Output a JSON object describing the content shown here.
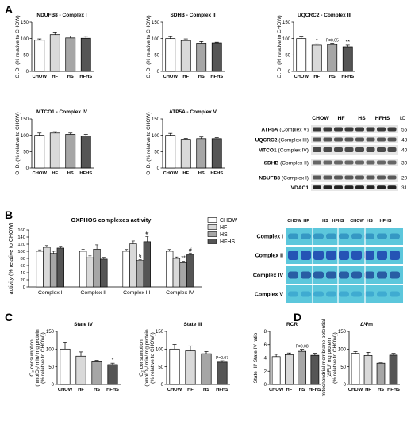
{
  "panels": {
    "A": "A",
    "B": "B",
    "C": "C",
    "D": "D"
  },
  "chart_data": [
    {
      "id": "ndufb8",
      "type": "bar",
      "title": "NDUFB8 - Complex I",
      "ylabel": "O. D. (% relative to CHOW)",
      "categories": [
        "CHOW",
        "HF",
        "HS",
        "HFHS"
      ],
      "values": [
        95,
        112,
        102,
        101
      ],
      "errors": [
        4,
        8,
        6,
        6
      ],
      "ylim": [
        0,
        150
      ],
      "yticks": [
        "0",
        "50",
        "100",
        "150"
      ],
      "annotations": [
        "",
        "",
        "",
        ""
      ]
    },
    {
      "id": "sdhb",
      "type": "bar",
      "title": "SDHB - Complex II",
      "ylabel": "O. D. (% relative to CHOW)",
      "categories": [
        "CHOW",
        "HF",
        "HS",
        "HFHS"
      ],
      "values": [
        100,
        94,
        86,
        87
      ],
      "errors": [
        6,
        5,
        5,
        2
      ],
      "ylim": [
        0,
        150
      ],
      "yticks": [
        "0",
        "50",
        "100",
        "150"
      ],
      "annotations": [
        "",
        "",
        "",
        ""
      ]
    },
    {
      "id": "uqcrc2",
      "type": "bar",
      "title": "UQCRC2 - Complex III",
      "ylabel": "O. D. (% relative to CHOW)",
      "categories": [
        "CHOW",
        "HF",
        "HS",
        "HFHS"
      ],
      "values": [
        100,
        80,
        82,
        75
      ],
      "errors": [
        5,
        4,
        4,
        5
      ],
      "ylim": [
        0,
        150
      ],
      "yticks": [
        "0",
        "50",
        "100",
        "150"
      ],
      "annotations": [
        "",
        "*",
        "P=0.05",
        "**"
      ]
    },
    {
      "id": "mtco1",
      "type": "bar",
      "title": "MTCO1 - Complex IV",
      "ylabel": "O. D. (% relative to CHOW)",
      "categories": [
        "CHOW",
        "HF",
        "HS",
        "HFHS"
      ],
      "values": [
        100,
        107,
        103,
        98
      ],
      "errors": [
        7,
        4,
        4,
        5
      ],
      "ylim": [
        0,
        150
      ],
      "yticks": [
        "0",
        "50",
        "100",
        "150"
      ],
      "annotations": [
        "",
        "",
        "",
        ""
      ]
    },
    {
      "id": "atp5a",
      "type": "bar",
      "title": "ATP5A - Complex V",
      "ylabel": "O. D. (% relative to CHOW)",
      "categories": [
        "CHOW",
        "HF",
        "HS",
        "HFHS"
      ],
      "values": [
        100,
        88,
        90,
        90
      ],
      "errors": [
        6,
        3,
        5,
        3
      ],
      "ylim": [
        0,
        150
      ],
      "yticks": [
        "0",
        "50",
        "100",
        "150"
      ],
      "annotations": [
        "",
        "",
        "",
        ""
      ]
    },
    {
      "id": "oxphos",
      "type": "bar",
      "title": "OXPHOS complexes activity",
      "ylabel": "activity (% relative to CHOW)",
      "categories": [
        "Complex I",
        "Complex II",
        "Complex III",
        "Complex IV"
      ],
      "series": [
        {
          "name": "CHOW",
          "values": [
            100,
            100,
            100,
            100
          ],
          "errors": [
            4,
            6,
            5,
            5
          ]
        },
        {
          "name": "HF",
          "values": [
            111,
            82,
            121,
            80
          ],
          "errors": [
            5,
            5,
            8,
            4
          ]
        },
        {
          "name": "HS",
          "values": [
            94,
            106,
            74,
            68
          ],
          "errors": [
            6,
            12,
            3,
            4
          ]
        },
        {
          "name": "HFHS",
          "values": [
            109,
            78,
            127,
            90
          ],
          "errors": [
            5,
            5,
            14,
            5
          ]
        }
      ],
      "ylim": [
        0,
        160
      ],
      "yticks": [
        "0",
        "20",
        "40",
        "60",
        "80",
        "100",
        "120",
        "140",
        "160"
      ],
      "annotations": [
        {
          "category": 2,
          "series": 2,
          "text": "§"
        },
        {
          "category": 2,
          "series": 3,
          "text": "#"
        },
        {
          "category": 3,
          "series": 2,
          "text": "**"
        },
        {
          "category": 3,
          "series": 3,
          "text": "#"
        }
      ]
    },
    {
      "id": "state4",
      "type": "bar",
      "title": "State IV",
      "ylabel": [
        "O₂ consumption",
        "(nmolO₂/ min/ mg protein",
        "(% relative to CHOW))"
      ],
      "categories": [
        "CHOW",
        "HF",
        "HS",
        "HFHS"
      ],
      "values": [
        100,
        80,
        64,
        56
      ],
      "errors": [
        18,
        12,
        4,
        4
      ],
      "ylim": [
        0,
        150
      ],
      "yticks": [
        "0",
        "50",
        "100",
        "150"
      ],
      "annotations": [
        "",
        "",
        "",
        "*"
      ]
    },
    {
      "id": "state3",
      "type": "bar",
      "title": "State III",
      "ylabel": [
        "O₂ consumption",
        "(nmolO₂/ min/ mg protein",
        "(% relative to CHOW))"
      ],
      "categories": [
        "CHOW",
        "HF",
        "HS",
        "HFHS"
      ],
      "values": [
        100,
        95,
        87,
        63
      ],
      "errors": [
        13,
        14,
        6,
        4
      ],
      "ylim": [
        0,
        150
      ],
      "yticks": [
        "0",
        "50",
        "100",
        "150"
      ],
      "annotations": [
        "",
        "",
        "",
        "P=0.07"
      ]
    },
    {
      "id": "rcr",
      "type": "bar",
      "title": "RCR",
      "ylabel": "State III/ State IV ratio",
      "categories": [
        "CHOW",
        "HF",
        "HS",
        "HFHS"
      ],
      "values": [
        4.2,
        4.5,
        5.0,
        4.4
      ],
      "errors": [
        0.35,
        0.25,
        0.3,
        0.3
      ],
      "ylim": [
        0,
        8
      ],
      "yticks": [
        "0",
        "2",
        "4",
        "6",
        "8"
      ],
      "annotations": [
        "",
        "",
        "P=0.08",
        ""
      ]
    },
    {
      "id": "dpsi",
      "type": "bar",
      "title": "ΔΨm",
      "ylabel": [
        "mitochondrial membrane potential",
        "(ΔFU/ mg protein",
        "(% relative to CHOW))"
      ],
      "categories": [
        "CHOW",
        "HF",
        "HS",
        "HFHS"
      ],
      "values": [
        88,
        82,
        60,
        83
      ],
      "errors": [
        5,
        9,
        1,
        5
      ],
      "ylim": [
        0,
        150
      ],
      "yticks": [
        "0",
        "50",
        "100",
        "150"
      ],
      "annotations": [
        "",
        "",
        "",
        ""
      ]
    }
  ],
  "legend": [
    "CHOW",
    "HF",
    "HS",
    "HFHS"
  ],
  "colors": {
    "CHOW": "#ffffff",
    "HF": "#d9d9d9",
    "HS": "#a6a6a6",
    "HFHS": "#555555"
  },
  "blot": {
    "groups": [
      "CHOW",
      "HF",
      "HS",
      "HFHS"
    ],
    "unit": "kD",
    "rows": [
      {
        "label": "ATP5A",
        "detail": "(Complex V)",
        "kd": "55"
      },
      {
        "label": "UQCRC2",
        "detail": "(Complex III)",
        "kd": "48"
      },
      {
        "label": "MTCO1",
        "detail": "(Complex IV)",
        "kd": "40"
      },
      {
        "label": "SDHB",
        "detail": "(Complex II)",
        "kd": "30"
      },
      {
        "label": "NDUFB8",
        "detail": "(Complex I)",
        "kd": "20"
      },
      {
        "label": "VDAC1",
        "detail": "",
        "kd": "31"
      }
    ]
  },
  "gel": {
    "groups": [
      "CHOW",
      "HF",
      "HS",
      "HFHS",
      "CHOW",
      "HS",
      "HFHS"
    ],
    "rows": [
      "Complex I",
      "Complex II",
      "Complex IV",
      "Complex V"
    ]
  }
}
